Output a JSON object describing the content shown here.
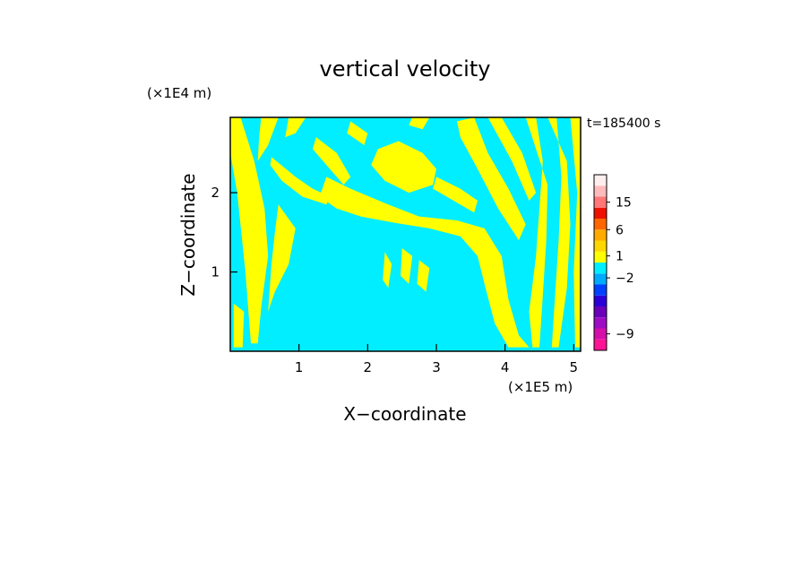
{
  "chart_data": {
    "type": "heatmap",
    "title": "vertical velocity",
    "xlabel": "X−coordinate",
    "ylabel": "Z−coordinate",
    "x_unit": "(×1E5 m)",
    "y_unit": "(×1E4 m)",
    "time_label": "t=185400 s",
    "xlim": [
      0,
      5.1
    ],
    "ylim": [
      0,
      2.95
    ],
    "x_ticks": [
      {
        "value": 1,
        "label": "1"
      },
      {
        "value": 2,
        "label": "2"
      },
      {
        "value": 3,
        "label": "3"
      },
      {
        "value": 4,
        "label": "4"
      },
      {
        "value": 5,
        "label": "5"
      }
    ],
    "y_ticks": [
      {
        "value": 1,
        "label": "1"
      },
      {
        "value": 2,
        "label": "2"
      }
    ],
    "background_color": "#00eeff",
    "positive_color": "#ffff00",
    "field_regions": [
      {
        "level": 1,
        "points": [
          [
            0,
            2.95
          ],
          [
            0.15,
            2.95
          ],
          [
            0.35,
            2.4
          ],
          [
            0.5,
            1.8
          ],
          [
            0.55,
            1.2
          ],
          [
            0.45,
            0.55
          ],
          [
            0.4,
            0.1
          ],
          [
            0.3,
            0.1
          ],
          [
            0.22,
            1.0
          ],
          [
            0.1,
            2.0
          ],
          [
            0,
            2.5
          ]
        ]
      },
      {
        "level": 1,
        "points": [
          [
            0.45,
            2.95
          ],
          [
            0.7,
            2.95
          ],
          [
            0.55,
            2.6
          ],
          [
            0.4,
            2.4
          ],
          [
            0.42,
            2.7
          ]
        ]
      },
      {
        "level": 1,
        "points": [
          [
            0.6,
            2.45
          ],
          [
            0.95,
            2.2
          ],
          [
            1.2,
            2.05
          ],
          [
            1.45,
            1.95
          ],
          [
            1.4,
            1.85
          ],
          [
            1.05,
            1.95
          ],
          [
            0.75,
            2.15
          ],
          [
            0.58,
            2.35
          ]
        ]
      },
      {
        "level": 1,
        "points": [
          [
            0.85,
            2.95
          ],
          [
            1.1,
            2.95
          ],
          [
            0.95,
            2.75
          ],
          [
            0.8,
            2.7
          ]
        ]
      },
      {
        "level": 1,
        "points": [
          [
            0.7,
            1.85
          ],
          [
            0.95,
            1.55
          ],
          [
            0.85,
            1.1
          ],
          [
            0.65,
            0.75
          ],
          [
            0.55,
            0.5
          ],
          [
            0.6,
            1.1
          ],
          [
            0.65,
            1.5
          ]
        ]
      },
      {
        "level": 1,
        "points": [
          [
            1.25,
            2.7
          ],
          [
            1.55,
            2.5
          ],
          [
            1.75,
            2.2
          ],
          [
            1.65,
            2.1
          ],
          [
            1.4,
            2.35
          ],
          [
            1.2,
            2.55
          ]
        ]
      },
      {
        "level": 1,
        "points": [
          [
            1.75,
            2.9
          ],
          [
            2.0,
            2.75
          ],
          [
            1.95,
            2.6
          ],
          [
            1.7,
            2.75
          ]
        ]
      },
      {
        "level": 1,
        "points": [
          [
            1.4,
            2.2
          ],
          [
            1.75,
            2.05
          ],
          [
            2.3,
            1.85
          ],
          [
            2.75,
            1.7
          ],
          [
            3.3,
            1.65
          ],
          [
            3.7,
            1.55
          ],
          [
            3.95,
            1.2
          ],
          [
            4.05,
            0.65
          ],
          [
            4.2,
            0.2
          ],
          [
            4.35,
            0.05
          ],
          [
            4.05,
            0.05
          ],
          [
            3.85,
            0.35
          ],
          [
            3.7,
            0.85
          ],
          [
            3.6,
            1.2
          ],
          [
            3.35,
            1.45
          ],
          [
            2.9,
            1.55
          ],
          [
            2.4,
            1.62
          ],
          [
            1.9,
            1.7
          ],
          [
            1.55,
            1.8
          ],
          [
            1.3,
            1.95
          ]
        ]
      },
      {
        "level": 1,
        "points": [
          [
            2.15,
            2.55
          ],
          [
            2.45,
            2.65
          ],
          [
            2.8,
            2.5
          ],
          [
            3.0,
            2.3
          ],
          [
            2.95,
            2.1
          ],
          [
            2.6,
            2.0
          ],
          [
            2.25,
            2.15
          ],
          [
            2.05,
            2.35
          ]
        ]
      },
      {
        "level": 1,
        "points": [
          [
            3.0,
            2.2
          ],
          [
            3.35,
            2.05
          ],
          [
            3.6,
            1.9
          ],
          [
            3.55,
            1.75
          ],
          [
            3.25,
            1.9
          ],
          [
            2.95,
            2.05
          ]
        ]
      },
      {
        "level": 1,
        "points": [
          [
            3.3,
            2.9
          ],
          [
            3.55,
            2.95
          ],
          [
            3.75,
            2.5
          ],
          [
            4.05,
            2.05
          ],
          [
            4.3,
            1.6
          ],
          [
            4.2,
            1.4
          ],
          [
            3.9,
            1.8
          ],
          [
            3.6,
            2.3
          ],
          [
            3.35,
            2.7
          ]
        ]
      },
      {
        "level": 1,
        "points": [
          [
            3.75,
            2.95
          ],
          [
            3.95,
            2.95
          ],
          [
            4.25,
            2.5
          ],
          [
            4.45,
            2.0
          ],
          [
            4.35,
            1.9
          ],
          [
            4.1,
            2.4
          ]
        ]
      },
      {
        "level": 1,
        "points": [
          [
            2.65,
            2.95
          ],
          [
            2.9,
            2.95
          ],
          [
            2.8,
            2.8
          ],
          [
            2.6,
            2.85
          ]
        ]
      },
      {
        "level": 1,
        "points": [
          [
            4.3,
            2.95
          ],
          [
            4.45,
            2.95
          ],
          [
            4.55,
            2.4
          ],
          [
            4.5,
            1.8
          ],
          [
            4.45,
            1.2
          ],
          [
            4.35,
            0.5
          ],
          [
            4.4,
            0.05
          ],
          [
            4.5,
            0.05
          ],
          [
            4.55,
            0.7
          ],
          [
            4.6,
            1.4
          ],
          [
            4.62,
            2.1
          ]
        ]
      },
      {
        "level": 1,
        "points": [
          [
            4.62,
            2.95
          ],
          [
            4.75,
            2.95
          ],
          [
            4.82,
            2.2
          ],
          [
            4.78,
            1.4
          ],
          [
            4.72,
            0.6
          ],
          [
            4.68,
            0.05
          ],
          [
            4.78,
            0.05
          ],
          [
            4.9,
            0.8
          ],
          [
            4.95,
            1.6
          ],
          [
            4.9,
            2.4
          ]
        ]
      },
      {
        "level": 1,
        "points": [
          [
            4.95,
            2.95
          ],
          [
            5.1,
            2.95
          ],
          [
            5.1,
            0.05
          ],
          [
            5.02,
            0.05
          ],
          [
            5.0,
            1.0
          ],
          [
            5.05,
            2.0
          ]
        ]
      },
      {
        "level": 1,
        "points": [
          [
            2.25,
            1.25
          ],
          [
            2.35,
            1.1
          ],
          [
            2.3,
            0.8
          ],
          [
            2.22,
            0.9
          ]
        ]
      },
      {
        "level": 1,
        "points": [
          [
            2.5,
            1.3
          ],
          [
            2.65,
            1.2
          ],
          [
            2.6,
            0.85
          ],
          [
            2.48,
            0.95
          ]
        ]
      },
      {
        "level": 1,
        "points": [
          [
            2.75,
            1.15
          ],
          [
            2.9,
            1.05
          ],
          [
            2.85,
            0.75
          ],
          [
            2.72,
            0.85
          ]
        ]
      },
      {
        "level": 1,
        "points": [
          [
            0.05,
            0.6
          ],
          [
            0.2,
            0.5
          ],
          [
            0.18,
            0.05
          ],
          [
            0.05,
            0.05
          ]
        ]
      }
    ],
    "colorbar": {
      "tick_labels": [
        {
          "value": 15,
          "label": "15"
        },
        {
          "value": 6,
          "label": "6"
        },
        {
          "value": 1,
          "label": "1"
        },
        {
          "value": -2,
          "label": "−2"
        },
        {
          "value": -9,
          "label": "−9"
        }
      ],
      "bands": [
        {
          "color": "#ff1493"
        },
        {
          "color": "#d40faa"
        },
        {
          "color": "#9e0cc4"
        },
        {
          "color": "#6a00b8"
        },
        {
          "color": "#2b00d6"
        },
        {
          "color": "#0040ff"
        },
        {
          "color": "#00aaff"
        },
        {
          "color": "#00eeff"
        },
        {
          "color": "#ffff00"
        },
        {
          "color": "#ffd700"
        },
        {
          "color": "#ffaa00"
        },
        {
          "color": "#ff6600"
        },
        {
          "color": "#ee1100"
        },
        {
          "color": "#ff7777"
        },
        {
          "color": "#ffbbbb"
        },
        {
          "color": "#ffeeee"
        }
      ]
    }
  }
}
